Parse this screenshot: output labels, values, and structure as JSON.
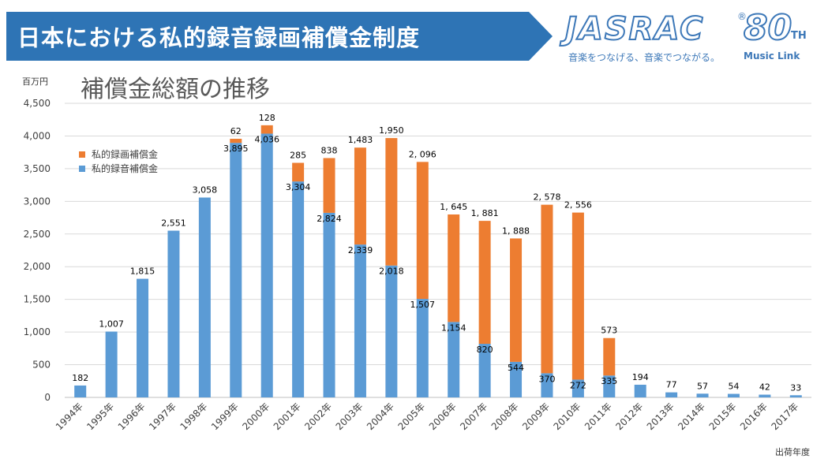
{
  "header": {
    "title": "日本における私的録音録画補償金制度",
    "banner_color": "#2e74b5"
  },
  "logo": {
    "wordmark": "JASRAC",
    "registered": "®",
    "anniversary": "80",
    "anniversary_suffix": "TH",
    "tagline": "音楽をつなげる、音楽でつながる。",
    "sub": "Music Link",
    "color": "#3d78b8"
  },
  "chart_data": {
    "type": "bar",
    "stacked": true,
    "title": "補償金総額の推移",
    "ylabel": "百万円",
    "xlabel": "出荷年度",
    "ylim": [
      0,
      4500
    ],
    "yticks": [
      0,
      500,
      1000,
      1500,
      2000,
      2500,
      3000,
      3500,
      4000,
      4500
    ],
    "ytick_labels": [
      "0",
      "500",
      "1,000",
      "1,500",
      "2,000",
      "2,500",
      "3,000",
      "3,500",
      "4,000",
      "4,500"
    ],
    "grid": true,
    "legend_position": "top-left",
    "categories": [
      "1994年",
      "1995年",
      "1996年",
      "1997年",
      "1998年",
      "1999年",
      "2000年",
      "2001年",
      "2002年",
      "2003年",
      "2004年",
      "2005年",
      "2006年",
      "2007年",
      "2008年",
      "2009年",
      "2010年",
      "2011年",
      "2012年",
      "2013年",
      "2014年",
      "2015年",
      "2016年",
      "2017年"
    ],
    "series": [
      {
        "name": "私的録音補償金",
        "color": "#5b9bd5",
        "values": [
          182,
          1007,
          1815,
          2551,
          3058,
          3895,
          4036,
          3304,
          2824,
          2339,
          2018,
          1507,
          1154,
          820,
          544,
          370,
          272,
          335,
          194,
          77,
          57,
          54,
          42,
          33
        ],
        "labels": [
          "182",
          "1,007",
          "1,815",
          "2,551",
          "3,058",
          "3,895",
          "4,036",
          "3,304",
          "2,824",
          "2,339",
          "2,018",
          "1,507",
          "1,154",
          "820",
          "544",
          "370",
          "272",
          "335",
          "194",
          "77",
          "57",
          "54",
          "42",
          "33"
        ]
      },
      {
        "name": "私的録画補償金",
        "color": "#ed7d31",
        "values": [
          null,
          null,
          null,
          null,
          null,
          62,
          128,
          285,
          838,
          1483,
          1950,
          2096,
          1645,
          1881,
          1888,
          2578,
          2556,
          573,
          null,
          null,
          null,
          null,
          null,
          null
        ],
        "labels": [
          "",
          "",
          "",
          "",
          "",
          "62",
          "128",
          "285",
          "838",
          "1,483",
          "1,950",
          "2, 096",
          "1, 645",
          "1, 881",
          "1, 888",
          "2, 578",
          "2, 556",
          "573",
          "",
          "",
          "",
          "",
          "",
          ""
        ]
      }
    ]
  }
}
